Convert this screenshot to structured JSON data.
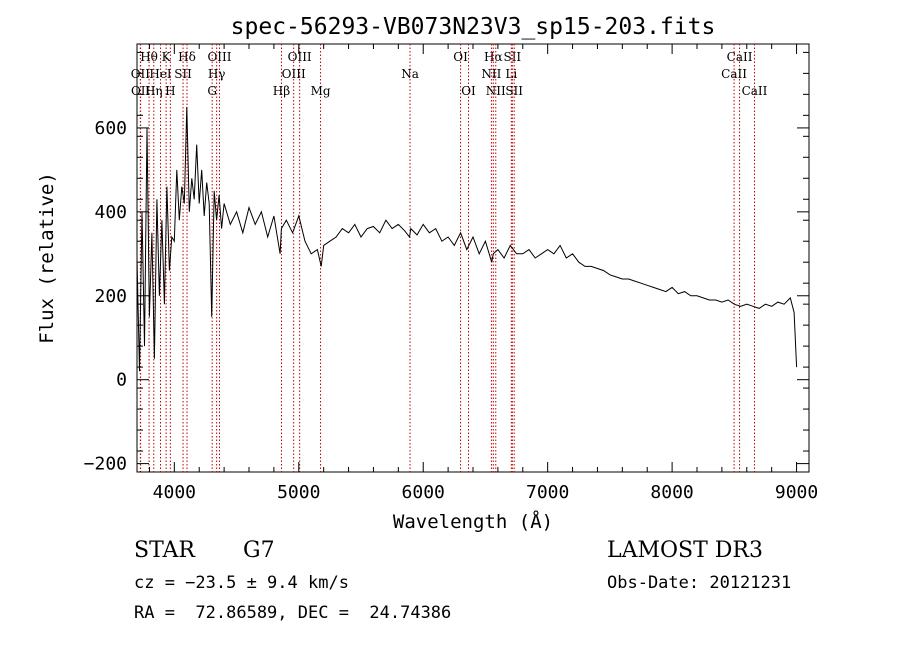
{
  "chart_data": {
    "type": "line",
    "title": "spec-56293-VB073N23V3_sp15-203.fits",
    "xlabel": "Wavelength (Å)",
    "ylabel": "Flux (relative)",
    "xlim": [
      3700,
      9100
    ],
    "ylim": [
      -220,
      800
    ],
    "xticks": [
      4000,
      5000,
      6000,
      7000,
      8000,
      9000
    ],
    "yticks": [
      -200,
      0,
      200,
      400,
      600
    ],
    "grid": false,
    "series": [
      {
        "name": "flux",
        "x": [
          3700,
          3720,
          3740,
          3760,
          3780,
          3800,
          3820,
          3840,
          3860,
          3880,
          3900,
          3920,
          3940,
          3960,
          3980,
          4000,
          4020,
          4040,
          4060,
          4080,
          4100,
          4120,
          4140,
          4160,
          4180,
          4200,
          4220,
          4240,
          4260,
          4280,
          4300,
          4320,
          4340,
          4360,
          4380,
          4400,
          4450,
          4500,
          4550,
          4600,
          4650,
          4700,
          4750,
          4800,
          4850,
          4860,
          4900,
          4950,
          5000,
          5050,
          5100,
          5150,
          5180,
          5200,
          5250,
          5300,
          5350,
          5400,
          5450,
          5500,
          5550,
          5600,
          5650,
          5700,
          5750,
          5800,
          5850,
          5890,
          5900,
          5950,
          6000,
          6050,
          6100,
          6150,
          6200,
          6250,
          6300,
          6350,
          6400,
          6450,
          6500,
          6550,
          6563,
          6600,
          6650,
          6700,
          6750,
          6800,
          6850,
          6900,
          6950,
          7000,
          7050,
          7100,
          7150,
          7200,
          7250,
          7300,
          7350,
          7400,
          7450,
          7500,
          7550,
          7600,
          7650,
          7700,
          7750,
          7800,
          7850,
          7900,
          7950,
          8000,
          8050,
          8100,
          8150,
          8200,
          8250,
          8300,
          8350,
          8400,
          8450,
          8500,
          8550,
          8600,
          8650,
          8700,
          8750,
          8800,
          8850,
          8900,
          8950,
          8980,
          9000
        ],
        "values": [
          290,
          20,
          400,
          80,
          600,
          150,
          350,
          50,
          430,
          200,
          380,
          180,
          460,
          260,
          340,
          330,
          500,
          380,
          460,
          420,
          650,
          400,
          480,
          430,
          560,
          420,
          500,
          390,
          470,
          420,
          150,
          450,
          380,
          440,
          360,
          420,
          370,
          400,
          350,
          410,
          370,
          400,
          340,
          390,
          300,
          360,
          380,
          350,
          390,
          330,
          300,
          310,
          270,
          320,
          330,
          340,
          360,
          350,
          370,
          340,
          360,
          365,
          350,
          380,
          360,
          370,
          355,
          340,
          360,
          345,
          370,
          350,
          360,
          330,
          340,
          320,
          350,
          310,
          340,
          300,
          330,
          280,
          300,
          310,
          290,
          320,
          300,
          300,
          310,
          290,
          300,
          310,
          300,
          320,
          290,
          300,
          280,
          270,
          270,
          265,
          260,
          250,
          245,
          240,
          240,
          235,
          230,
          225,
          220,
          215,
          210,
          220,
          205,
          210,
          200,
          200,
          195,
          190,
          190,
          185,
          190,
          180,
          175,
          180,
          175,
          170,
          180,
          175,
          185,
          180,
          195,
          160,
          30
        ]
      }
    ],
    "lines": [
      {
        "label": "Hθ",
        "wl": 3797,
        "row": 1
      },
      {
        "label": "OII",
        "wl": 3727,
        "row": 2
      },
      {
        "label": "OII",
        "wl": 3729,
        "row": 3
      },
      {
        "label": "K",
        "wl": 3934,
        "row": 1
      },
      {
        "label": "HeI",
        "wl": 3889,
        "row": 2
      },
      {
        "label": "Hη",
        "wl": 3835,
        "row": 3
      },
      {
        "label": "H",
        "wl": 3968,
        "row": 3
      },
      {
        "label": "Hδ",
        "wl": 4102,
        "row": 1
      },
      {
        "label": "SII",
        "wl": 4070,
        "row": 2
      },
      {
        "label": "OIII",
        "wl": 4363,
        "row": 1
      },
      {
        "label": "Hγ",
        "wl": 4340,
        "row": 2
      },
      {
        "label": "G",
        "wl": 4304,
        "row": 3
      },
      {
        "label": "Hβ",
        "wl": 4861,
        "row": 3
      },
      {
        "label": "OIII",
        "wl": 5007,
        "row": 1
      },
      {
        "label": "OIII",
        "wl": 4959,
        "row": 2
      },
      {
        "label": "Mg",
        "wl": 5175,
        "row": 3
      },
      {
        "label": "Na",
        "wl": 5894,
        "row": 2
      },
      {
        "label": "OI",
        "wl": 6300,
        "row": 1
      },
      {
        "label": "OI",
        "wl": 6364,
        "row": 3
      },
      {
        "label": "Hα",
        "wl": 6563,
        "row": 1
      },
      {
        "label": "NII",
        "wl": 6548,
        "row": 2
      },
      {
        "label": "NII",
        "wl": 6583,
        "row": 3
      },
      {
        "label": "SII",
        "wl": 6716,
        "row": 1
      },
      {
        "label": "Li",
        "wl": 6708,
        "row": 2
      },
      {
        "label": "SII",
        "wl": 6731,
        "row": 3
      },
      {
        "label": "CaII",
        "wl": 8542,
        "row": 1
      },
      {
        "label": "CaII",
        "wl": 8498,
        "row": 2
      },
      {
        "label": "CaII",
        "wl": 8662,
        "row": 3
      }
    ]
  },
  "info": {
    "object_class": "STAR",
    "subclass": "G7",
    "survey": "LAMOST DR3",
    "cz": "cz = −23.5 ± 9.4 km/s",
    "obs_date": "Obs-Date: 20121231",
    "radec": "RA =  72.86589, DEC =  24.74386"
  }
}
